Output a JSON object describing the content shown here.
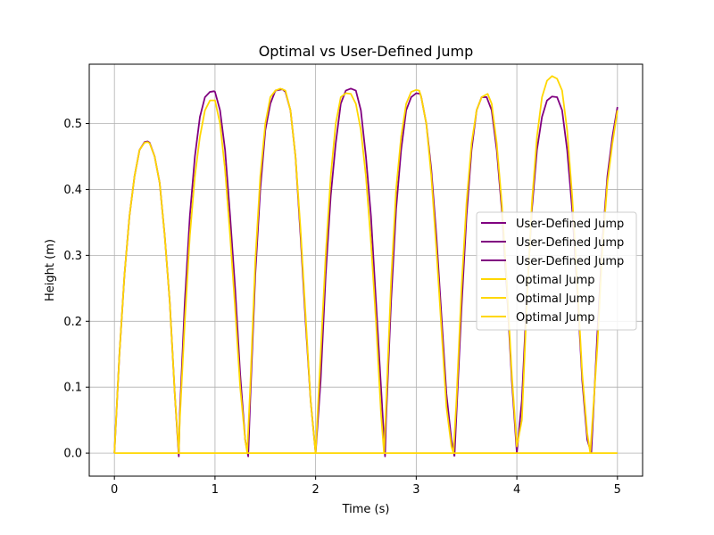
{
  "chart_data": {
    "type": "line",
    "title": "Optimal vs User-Defined Jump",
    "xlabel": "Time (s)",
    "ylabel": "Height (m)",
    "xlim": [
      -0.25,
      5.25
    ],
    "ylim": [
      -0.035,
      0.59
    ],
    "xticks": [
      0,
      1,
      2,
      3,
      4,
      5
    ],
    "yticks": [
      0.0,
      0.1,
      0.2,
      0.3,
      0.4,
      0.5
    ],
    "grid": true,
    "legend_position": "center-right",
    "series": [
      {
        "name": "User-Defined Jump",
        "color": "#800080",
        "x": [
          0.0,
          0.05,
          0.1,
          0.15,
          0.2,
          0.25,
          0.3,
          0.33,
          0.35,
          0.4,
          0.45,
          0.5,
          0.55,
          0.6,
          0.64,
          0.65,
          0.7,
          0.75,
          0.8,
          0.85,
          0.9,
          0.95,
          0.99,
          1.0,
          1.05,
          1.1,
          1.15,
          1.2,
          1.25,
          1.3,
          1.33,
          1.35,
          1.4,
          1.45,
          1.5,
          1.55,
          1.6,
          1.67,
          1.7,
          1.75,
          1.8,
          1.85,
          1.9,
          1.95,
          2.0
        ],
        "y": [
          0.0,
          0.15,
          0.27,
          0.36,
          0.42,
          0.46,
          0.472,
          0.473,
          0.471,
          0.45,
          0.41,
          0.33,
          0.23,
          0.09,
          -0.005,
          0.06,
          0.23,
          0.36,
          0.45,
          0.51,
          0.54,
          0.548,
          0.549,
          0.548,
          0.52,
          0.46,
          0.36,
          0.25,
          0.12,
          0.02,
          -0.005,
          0.08,
          0.27,
          0.4,
          0.49,
          0.53,
          0.55,
          0.552,
          0.548,
          0.52,
          0.45,
          0.33,
          0.2,
          0.08,
          0.0
        ]
      },
      {
        "name": "User-Defined Jump",
        "color": "#800080",
        "x": [
          2.0,
          2.05,
          2.1,
          2.15,
          2.2,
          2.25,
          2.3,
          2.35,
          2.4,
          2.45,
          2.5,
          2.55,
          2.6,
          2.65,
          2.69,
          2.7,
          2.75,
          2.8,
          2.85,
          2.9,
          2.95,
          3.0,
          3.04,
          3.05,
          3.1,
          3.15,
          3.2,
          3.25,
          3.3,
          3.35,
          3.38
        ],
        "y": [
          0.0,
          0.11,
          0.27,
          0.39,
          0.47,
          0.53,
          0.55,
          0.553,
          0.55,
          0.52,
          0.45,
          0.36,
          0.23,
          0.1,
          -0.005,
          0.05,
          0.23,
          0.37,
          0.46,
          0.52,
          0.54,
          0.546,
          0.545,
          0.54,
          0.5,
          0.43,
          0.33,
          0.21,
          0.09,
          0.02,
          -0.005
        ]
      },
      {
        "name": "User-Defined Jump",
        "color": "#800080",
        "x": [
          3.38,
          3.4,
          3.45,
          3.5,
          3.55,
          3.6,
          3.65,
          3.7,
          3.75,
          3.8,
          3.85,
          3.9,
          3.95,
          4.0,
          4.05,
          4.1,
          4.15,
          4.2,
          4.25,
          4.3,
          4.35,
          4.4,
          4.45,
          4.5,
          4.55,
          4.6,
          4.65,
          4.7,
          4.74,
          4.8,
          4.85,
          4.9,
          4.95,
          5.0
        ],
        "y": [
          -0.005,
          0.06,
          0.22,
          0.36,
          0.46,
          0.52,
          0.54,
          0.54,
          0.52,
          0.46,
          0.37,
          0.25,
          0.11,
          0.0,
          0.08,
          0.24,
          0.37,
          0.46,
          0.51,
          0.535,
          0.541,
          0.54,
          0.52,
          0.46,
          0.37,
          0.25,
          0.11,
          0.02,
          0.0,
          0.18,
          0.32,
          0.42,
          0.48,
          0.525
        ]
      },
      {
        "name": "Optimal Jump",
        "color": "#FFD700",
        "x": [
          0.0,
          0.05,
          0.1,
          0.15,
          0.2,
          0.25,
          0.3,
          0.33,
          0.35,
          0.4,
          0.45,
          0.5,
          0.55,
          0.6,
          0.64,
          0.65,
          0.7,
          0.75,
          0.8,
          0.85,
          0.9,
          0.95,
          1.0,
          1.05,
          1.1,
          1.15,
          1.2,
          1.25,
          1.3,
          1.32,
          1.35,
          1.4,
          1.45,
          1.5,
          1.55,
          1.6,
          1.65,
          1.7,
          1.75,
          1.8,
          1.85,
          1.9,
          1.95,
          2.0
        ],
        "y": [
          0.0,
          0.15,
          0.27,
          0.36,
          0.42,
          0.46,
          0.471,
          0.472,
          0.47,
          0.45,
          0.41,
          0.33,
          0.23,
          0.09,
          0.0,
          0.05,
          0.2,
          0.33,
          0.42,
          0.48,
          0.52,
          0.535,
          0.535,
          0.5,
          0.43,
          0.33,
          0.22,
          0.1,
          0.02,
          0.0,
          0.1,
          0.29,
          0.42,
          0.5,
          0.54,
          0.55,
          0.553,
          0.55,
          0.52,
          0.45,
          0.34,
          0.21,
          0.08,
          0.0
        ]
      },
      {
        "name": "Optimal Jump",
        "color": "#FFD700",
        "x": [
          2.0,
          2.05,
          2.1,
          2.15,
          2.2,
          2.25,
          2.3,
          2.35,
          2.4,
          2.45,
          2.5,
          2.55,
          2.6,
          2.65,
          2.68,
          2.7,
          2.75,
          2.8,
          2.85,
          2.9,
          2.95,
          3.0,
          3.03,
          3.05,
          3.1,
          3.15,
          3.2,
          3.25,
          3.3,
          3.35,
          3.37
        ],
        "y": [
          0.0,
          0.15,
          0.3,
          0.42,
          0.5,
          0.54,
          0.546,
          0.545,
          0.53,
          0.49,
          0.42,
          0.32,
          0.2,
          0.06,
          0.0,
          0.07,
          0.26,
          0.4,
          0.48,
          0.53,
          0.548,
          0.551,
          0.55,
          0.54,
          0.5,
          0.42,
          0.31,
          0.19,
          0.07,
          0.01,
          0.0
        ]
      },
      {
        "name": "Optimal Jump",
        "color": "#FFD700",
        "x": [
          3.37,
          3.4,
          3.45,
          3.5,
          3.55,
          3.6,
          3.65,
          3.71,
          3.75,
          3.8,
          3.85,
          3.9,
          3.95,
          4.0,
          4.05,
          4.1,
          4.15,
          4.2,
          4.25,
          4.3,
          4.35,
          4.4,
          4.45,
          4.5,
          4.55,
          4.6,
          4.65,
          4.7,
          4.73,
          4.8,
          4.85,
          4.9,
          4.95,
          5.0
        ],
        "y": [
          0.0,
          0.08,
          0.25,
          0.38,
          0.47,
          0.52,
          0.54,
          0.545,
          0.53,
          0.47,
          0.38,
          0.26,
          0.12,
          0.01,
          0.05,
          0.23,
          0.38,
          0.48,
          0.54,
          0.565,
          0.572,
          0.568,
          0.55,
          0.49,
          0.39,
          0.26,
          0.12,
          0.03,
          0.0,
          0.16,
          0.31,
          0.41,
          0.47,
          0.52
        ]
      },
      {
        "name": "Optimal Jump",
        "color": "#FFD700",
        "x": [
          0.0,
          5.0
        ],
        "y": [
          0.0,
          0.0
        ]
      }
    ],
    "legend": [
      {
        "label": "User-Defined Jump",
        "color": "#800080"
      },
      {
        "label": "User-Defined Jump",
        "color": "#800080"
      },
      {
        "label": "User-Defined Jump",
        "color": "#800080"
      },
      {
        "label": "Optimal Jump",
        "color": "#FFD700"
      },
      {
        "label": "Optimal Jump",
        "color": "#FFD700"
      },
      {
        "label": "Optimal Jump",
        "color": "#FFD700"
      }
    ]
  }
}
